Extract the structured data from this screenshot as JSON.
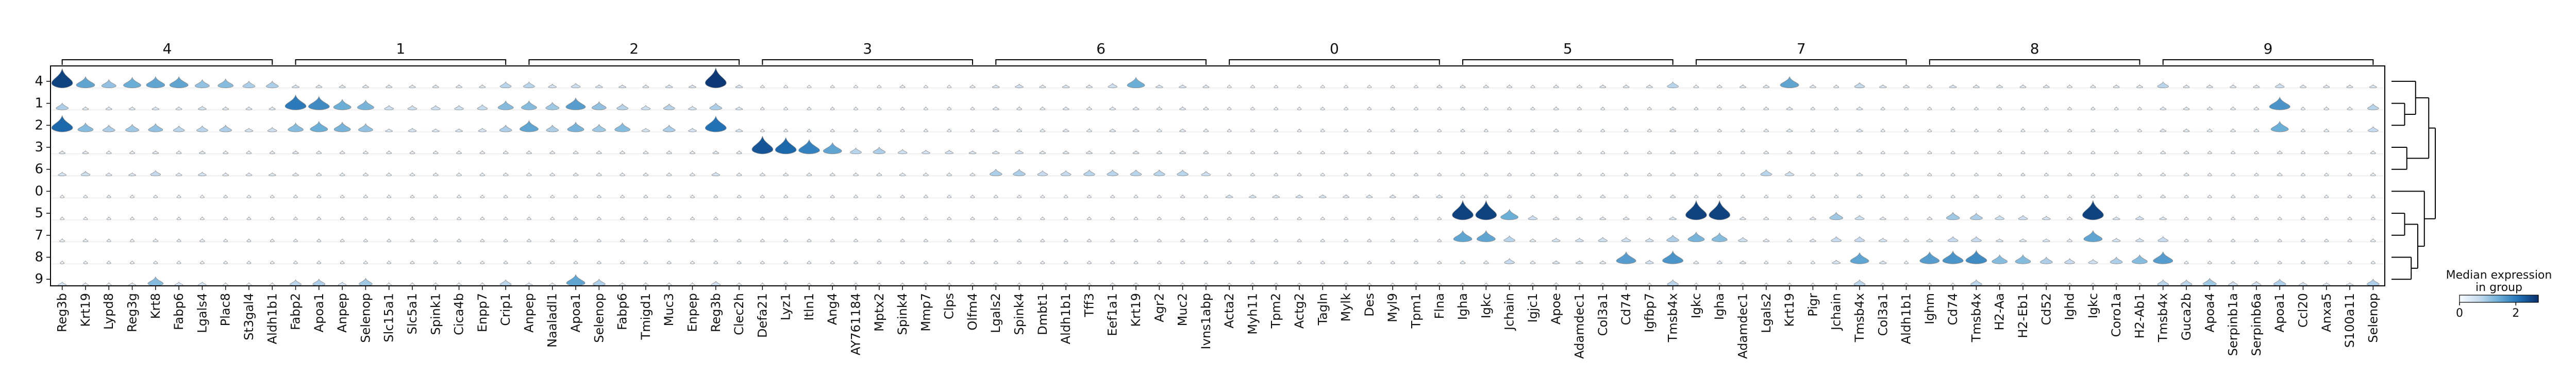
{
  "chart_data": {
    "type": "stacked_violin",
    "rows": [
      "4",
      "1",
      "2",
      "3",
      "6",
      "0",
      "5",
      "7",
      "8",
      "9"
    ],
    "groups": [
      {
        "label": "4",
        "genes": [
          "Reg3b",
          "Krt19",
          "Lypd8",
          "Reg3g",
          "Krt8",
          "Fabp6",
          "Lgals4",
          "Plac8",
          "St3gal4",
          "Aldh1b1"
        ]
      },
      {
        "label": "1",
        "genes": [
          "Fabp2",
          "Apoa1",
          "Anpep",
          "Selenop",
          "Slc15a1",
          "Slc5a1",
          "Spink1",
          "Cica4b",
          "Enpp7",
          "Crip1"
        ]
      },
      {
        "label": "2",
        "genes": [
          "Anpep",
          "Naaladl1",
          "Apoa1",
          "Selenop",
          "Fabp6",
          "Tmigd1",
          "Muc3",
          "Enpep",
          "Reg3b",
          "Clec2h"
        ]
      },
      {
        "label": "3",
        "genes": [
          "Defa21",
          "Lyz1",
          "Itln1",
          "Ang4",
          "AY761184",
          "Mptx2",
          "Spink4",
          "Mmp7",
          "Clps",
          "Olfm4"
        ]
      },
      {
        "label": "6",
        "genes": [
          "Lgals2",
          "Spink4",
          "Dmbt1",
          "Aldh1b1",
          "Tff3",
          "Eef1a1",
          "Krt19",
          "Agr2",
          "Muc2",
          "Ivns1abp"
        ]
      },
      {
        "label": "0",
        "genes": [
          "Acta2",
          "Myh11",
          "Tpm2",
          "Actg2",
          "Tagln",
          "Mylk",
          "Des",
          "Myl9",
          "Tpm1",
          "Flna"
        ]
      },
      {
        "label": "5",
        "genes": [
          "Igha",
          "Igkc",
          "Jchain",
          "Igjc1",
          "Apoe",
          "Adamdec1",
          "Col3a1",
          "Cd74",
          "Igfbp7",
          "Tmsb4x"
        ]
      },
      {
        "label": "7",
        "genes": [
          "Igkc",
          "Igha",
          "Adamdec1",
          "Lgals2",
          "Krt19",
          "Pigr",
          "Jchain",
          "Tmsb4x",
          "Col3a1",
          "Aldh1b1"
        ]
      },
      {
        "label": "8",
        "genes": [
          "Ighm",
          "Cd74",
          "Tmsb4x",
          "H2-Aa",
          "H2-Eb1",
          "Cd52",
          "Ighd",
          "Igkc",
          "Coro1a",
          "H2-Ab1"
        ]
      },
      {
        "label": "9",
        "genes": [
          "Tmsb4x",
          "Guca2b",
          "Apoa4",
          "Serpinb1a",
          "Serpinb6a",
          "Apoa1",
          "Ccl20",
          "Anxa5",
          "S100a11",
          "Selenop"
        ]
      }
    ],
    "dendrogram_order": [
      "4",
      "1",
      "2",
      "3",
      "6",
      "0",
      "5",
      "7",
      "8",
      "9"
    ],
    "violin_fill_median": [
      [
        2.6,
        1.5,
        1.1,
        1.4,
        1.5,
        1.5,
        1.1,
        1.2,
        0.9,
        0.9,
        0.4,
        0.3,
        0.3,
        0.3,
        0.3,
        0.3,
        0.3,
        0.3,
        0.3,
        0.8,
        0.8,
        0.5,
        0.6,
        0.4,
        0.4,
        0.3,
        0.4,
        0.4,
        2.7,
        0.4,
        0.1,
        0.1,
        0.1,
        0.1,
        0.1,
        0.1,
        0.2,
        0.1,
        0.1,
        0.2,
        0.4,
        0.5,
        0.3,
        0.4,
        0.3,
        0.6,
        1.4,
        0.4,
        0.4,
        0.3,
        0.1,
        0.1,
        0.1,
        0.1,
        0.1,
        0.1,
        0.1,
        0.1,
        0.1,
        0.2,
        0.2,
        0.2,
        0.2,
        0.1,
        0.2,
        0.2,
        0.3,
        0.3,
        0.3,
        0.8,
        0.2,
        0.2,
        0.3,
        0.3,
        1.5,
        0.3,
        0.2,
        0.7,
        0.4,
        0.3,
        0.2,
        0.4,
        0.3,
        0.3,
        0.3,
        0.3,
        0.2,
        0.2,
        0.3,
        0.3,
        0.8,
        0.3,
        0.3,
        0.3,
        0.3,
        0.6,
        0.3,
        0.3,
        0.3,
        0.4
      ],
      [
        0.9,
        0.3,
        0.3,
        0.3,
        0.4,
        0.3,
        0.5,
        0.3,
        0.3,
        0.3,
        2.0,
        1.8,
        1.4,
        1.3,
        0.6,
        0.6,
        0.6,
        0.6,
        0.7,
        1.2,
        1.2,
        1.0,
        1.6,
        1.1,
        0.8,
        0.6,
        0.8,
        0.5,
        0.9,
        0.4,
        0.1,
        0.1,
        0.1,
        0.1,
        0.1,
        0.1,
        0.1,
        0.1,
        0.1,
        0.1,
        0.3,
        0.2,
        0.2,
        0.3,
        0.2,
        0.3,
        0.3,
        0.2,
        0.3,
        0.2,
        0.1,
        0.1,
        0.1,
        0.1,
        0.1,
        0.1,
        0.1,
        0.1,
        0.1,
        0.1,
        0.1,
        0.1,
        0.1,
        0.1,
        0.2,
        0.1,
        0.1,
        0.1,
        0.1,
        0.3,
        0.1,
        0.1,
        0.1,
        0.2,
        0.3,
        0.1,
        0.1,
        0.3,
        0.1,
        0.1,
        0.1,
        0.1,
        0.1,
        0.1,
        0.1,
        0.1,
        0.1,
        0.1,
        0.1,
        0.1,
        0.3,
        0.3,
        0.2,
        0.2,
        0.2,
        1.7,
        0.1,
        0.2,
        0.2,
        0.8
      ],
      [
        2.2,
        1.2,
        0.9,
        1.0,
        1.1,
        0.8,
        0.8,
        0.9,
        0.5,
        0.6,
        1.2,
        1.4,
        1.3,
        1.1,
        0.4,
        0.5,
        0.4,
        0.4,
        0.5,
        0.9,
        1.5,
        0.9,
        1.3,
        1.0,
        1.2,
        0.5,
        0.9,
        0.5,
        2.1,
        0.4,
        0.1,
        0.1,
        0.1,
        0.1,
        0.1,
        0.1,
        0.1,
        0.1,
        0.1,
        0.1,
        0.3,
        0.2,
        0.2,
        0.3,
        0.2,
        0.3,
        0.3,
        0.2,
        0.3,
        0.2,
        0.1,
        0.1,
        0.1,
        0.1,
        0.1,
        0.1,
        0.1,
        0.1,
        0.1,
        0.1,
        0.1,
        0.1,
        0.1,
        0.1,
        0.2,
        0.1,
        0.1,
        0.1,
        0.1,
        0.3,
        0.1,
        0.1,
        0.1,
        0.2,
        0.3,
        0.1,
        0.1,
        0.3,
        0.1,
        0.1,
        0.1,
        0.1,
        0.1,
        0.1,
        0.1,
        0.1,
        0.1,
        0.1,
        0.1,
        0.1,
        0.3,
        0.3,
        0.2,
        0.2,
        0.2,
        1.4,
        0.1,
        0.2,
        0.2,
        0.7
      ],
      [
        0.3,
        0.3,
        0.2,
        0.2,
        0.3,
        0.2,
        0.3,
        0.2,
        0.2,
        0.2,
        0.3,
        0.2,
        0.2,
        0.2,
        0.2,
        0.2,
        0.2,
        0.2,
        0.2,
        0.2,
        0.2,
        0.2,
        0.2,
        0.2,
        0.2,
        0.2,
        0.2,
        0.2,
        0.3,
        0.2,
        2.4,
        2.2,
        1.9,
        1.5,
        0.8,
        0.9,
        0.6,
        0.5,
        0.5,
        0.4,
        0.4,
        0.5,
        0.3,
        0.3,
        0.3,
        0.2,
        0.3,
        0.2,
        0.3,
        0.2,
        0.1,
        0.1,
        0.1,
        0.1,
        0.1,
        0.1,
        0.1,
        0.1,
        0.1,
        0.1,
        0.1,
        0.1,
        0.1,
        0.1,
        0.1,
        0.1,
        0.1,
        0.1,
        0.1,
        0.2,
        0.1,
        0.1,
        0.1,
        0.2,
        0.2,
        0.1,
        0.1,
        0.2,
        0.1,
        0.1,
        0.1,
        0.1,
        0.1,
        0.1,
        0.1,
        0.1,
        0.1,
        0.1,
        0.1,
        0.1,
        0.2,
        0.2,
        0.1,
        0.1,
        0.1,
        0.2,
        0.1,
        0.1,
        0.1,
        0.2
      ],
      [
        0.5,
        0.6,
        0.3,
        0.4,
        0.7,
        0.3,
        0.5,
        0.3,
        0.3,
        0.4,
        0.3,
        0.2,
        0.2,
        0.2,
        0.2,
        0.2,
        0.2,
        0.2,
        0.2,
        0.2,
        0.2,
        0.2,
        0.2,
        0.2,
        0.2,
        0.2,
        0.2,
        0.2,
        0.5,
        0.2,
        0.2,
        0.2,
        0.2,
        0.2,
        0.2,
        0.2,
        0.3,
        0.2,
        0.2,
        0.2,
        0.9,
        0.9,
        0.7,
        0.7,
        0.8,
        0.8,
        0.8,
        0.8,
        0.8,
        0.6,
        0.1,
        0.1,
        0.1,
        0.1,
        0.1,
        0.1,
        0.1,
        0.1,
        0.1,
        0.1,
        0.1,
        0.1,
        0.1,
        0.1,
        0.1,
        0.1,
        0.1,
        0.1,
        0.1,
        0.2,
        0.1,
        0.1,
        0.1,
        0.8,
        0.6,
        0.2,
        0.1,
        0.3,
        0.1,
        0.2,
        0.1,
        0.1,
        0.1,
        0.1,
        0.1,
        0.1,
        0.1,
        0.1,
        0.1,
        0.1,
        0.2,
        0.2,
        0.1,
        0.1,
        0.1,
        0.2,
        0.1,
        0.1,
        0.1,
        0.2
      ],
      [
        0.1,
        0.1,
        0.1,
        0.1,
        0.1,
        0.1,
        0.1,
        0.1,
        0.1,
        0.1,
        0.1,
        0.1,
        0.1,
        0.1,
        0.1,
        0.1,
        0.1,
        0.1,
        0.1,
        0.1,
        0.1,
        0.1,
        0.1,
        0.1,
        0.1,
        0.1,
        0.1,
        0.1,
        0.1,
        0.1,
        0.1,
        0.1,
        0.1,
        0.1,
        0.1,
        0.1,
        0.1,
        0.1,
        0.1,
        0.1,
        0.1,
        0.1,
        0.1,
        0.1,
        0.1,
        0.1,
        0.1,
        0.1,
        0.1,
        0.1,
        0.4,
        0.4,
        0.4,
        0.4,
        0.4,
        0.3,
        0.3,
        0.3,
        0.3,
        0.3,
        0.1,
        0.1,
        0.1,
        0.1,
        0.1,
        0.1,
        0.2,
        0.1,
        0.1,
        0.2,
        0.1,
        0.1,
        0.1,
        0.1,
        0.1,
        0.1,
        0.1,
        0.2,
        0.1,
        0.1,
        0.1,
        0.1,
        0.2,
        0.1,
        0.1,
        0.1,
        0.1,
        0.1,
        0.1,
        0.1,
        0.2,
        0.1,
        0.1,
        0.1,
        0.1,
        0.1,
        0.1,
        0.1,
        0.1,
        0.1
      ],
      [
        0.1,
        0.1,
        0.1,
        0.1,
        0.1,
        0.1,
        0.1,
        0.1,
        0.1,
        0.1,
        0.1,
        0.1,
        0.1,
        0.1,
        0.1,
        0.1,
        0.1,
        0.1,
        0.1,
        0.1,
        0.1,
        0.1,
        0.1,
        0.1,
        0.1,
        0.1,
        0.1,
        0.1,
        0.1,
        0.1,
        0.1,
        0.1,
        0.1,
        0.1,
        0.1,
        0.1,
        0.1,
        0.1,
        0.1,
        0.1,
        0.1,
        0.1,
        0.1,
        0.1,
        0.1,
        0.1,
        0.1,
        0.1,
        0.1,
        0.1,
        0.1,
        0.1,
        0.1,
        0.1,
        0.1,
        0.1,
        0.1,
        0.1,
        0.1,
        0.1,
        2.6,
        2.6,
        1.4,
        0.6,
        0.3,
        0.3,
        0.3,
        0.3,
        0.2,
        0.4,
        2.6,
        2.6,
        0.3,
        0.2,
        0.1,
        0.3,
        1.0,
        0.6,
        0.3,
        0.1,
        0.2,
        1.0,
        0.9,
        0.6,
        0.6,
        0.5,
        0.2,
        2.6,
        0.4,
        0.5,
        0.4,
        0.1,
        0.1,
        0.1,
        0.1,
        0.1,
        0.1,
        0.1,
        0.1,
        0.1
      ],
      [
        0.2,
        0.2,
        0.1,
        0.1,
        0.2,
        0.1,
        0.2,
        0.1,
        0.1,
        0.1,
        0.1,
        0.1,
        0.1,
        0.1,
        0.1,
        0.1,
        0.1,
        0.1,
        0.1,
        0.1,
        0.1,
        0.1,
        0.1,
        0.1,
        0.1,
        0.1,
        0.1,
        0.1,
        0.1,
        0.1,
        0.1,
        0.1,
        0.1,
        0.1,
        0.1,
        0.1,
        0.1,
        0.1,
        0.1,
        0.1,
        0.1,
        0.1,
        0.1,
        0.1,
        0.1,
        0.1,
        0.1,
        0.1,
        0.1,
        0.1,
        0.1,
        0.1,
        0.1,
        0.1,
        0.1,
        0.1,
        0.1,
        0.1,
        0.1,
        0.1,
        1.5,
        1.5,
        0.8,
        0.3,
        0.5,
        0.5,
        0.6,
        0.6,
        0.5,
        0.9,
        1.3,
        1.2,
        0.6,
        0.3,
        0.2,
        0.3,
        0.7,
        0.7,
        0.5,
        0.2,
        0.3,
        0.7,
        0.7,
        0.4,
        0.4,
        0.4,
        0.2,
        1.5,
        0.5,
        0.5,
        0.7,
        0.1,
        0.1,
        0.1,
        0.1,
        0.1,
        0.1,
        0.1,
        0.1,
        0.2
      ],
      [
        0.1,
        0.1,
        0.1,
        0.1,
        0.1,
        0.1,
        0.1,
        0.1,
        0.1,
        0.1,
        0.1,
        0.1,
        0.1,
        0.1,
        0.1,
        0.1,
        0.1,
        0.1,
        0.1,
        0.1,
        0.1,
        0.1,
        0.1,
        0.1,
        0.1,
        0.1,
        0.1,
        0.1,
        0.1,
        0.1,
        0.1,
        0.1,
        0.1,
        0.1,
        0.1,
        0.1,
        0.1,
        0.1,
        0.1,
        0.1,
        0.1,
        0.1,
        0.1,
        0.1,
        0.1,
        0.1,
        0.1,
        0.1,
        0.1,
        0.1,
        0.1,
        0.1,
        0.1,
        0.1,
        0.1,
        0.1,
        0.1,
        0.1,
        0.1,
        0.1,
        0.2,
        0.2,
        0.7,
        0.2,
        0.4,
        0.4,
        0.3,
        1.6,
        0.5,
        1.7,
        0.2,
        0.2,
        0.3,
        0.1,
        0.1,
        0.1,
        0.5,
        1.5,
        0.4,
        0.1,
        1.6,
        1.7,
        1.8,
        1.2,
        1.2,
        0.9,
        0.7,
        0.6,
        0.9,
        1.2,
        1.6,
        0.1,
        0.1,
        0.1,
        0.1,
        0.1,
        0.1,
        0.1,
        0.1,
        0.1
      ],
      [
        0.5,
        0.3,
        0.2,
        0.4,
        1.2,
        0.5,
        0.5,
        0.2,
        0.2,
        0.2,
        0.8,
        0.9,
        0.5,
        1.0,
        0.2,
        0.2,
        0.2,
        0.2,
        0.2,
        0.8,
        0.4,
        0.3,
        1.5,
        0.9,
        0.3,
        0.2,
        0.2,
        0.2,
        0.6,
        0.2,
        0.1,
        0.1,
        0.1,
        0.1,
        0.1,
        0.1,
        0.1,
        0.1,
        0.1,
        0.1,
        0.2,
        0.1,
        0.1,
        0.1,
        0.1,
        0.2,
        0.2,
        0.1,
        0.1,
        0.1,
        0.1,
        0.1,
        0.1,
        0.1,
        0.1,
        0.1,
        0.1,
        0.1,
        0.1,
        0.1,
        0.1,
        0.1,
        0.1,
        0.1,
        0.2,
        0.1,
        0.1,
        0.1,
        0.1,
        0.8,
        0.1,
        0.1,
        0.1,
        0.1,
        0.1,
        0.1,
        0.1,
        0.8,
        0.1,
        0.1,
        0.1,
        0.1,
        0.8,
        0.1,
        0.1,
        0.1,
        0.1,
        0.1,
        0.1,
        0.1,
        0.8,
        0.8,
        1.0,
        0.6,
        0.6,
        0.9,
        0.5,
        0.4,
        0.4,
        0.9
      ]
    ],
    "colorbar": {
      "title_line1": "Median expression",
      "title_line2": "in group",
      "ticks": [
        "0",
        "2"
      ],
      "min": 0,
      "max": 2.8,
      "colormap": "Blues"
    },
    "colors": {
      "low": "#f7fbff",
      "high": "#08306b",
      "axis": "#000000"
    }
  }
}
